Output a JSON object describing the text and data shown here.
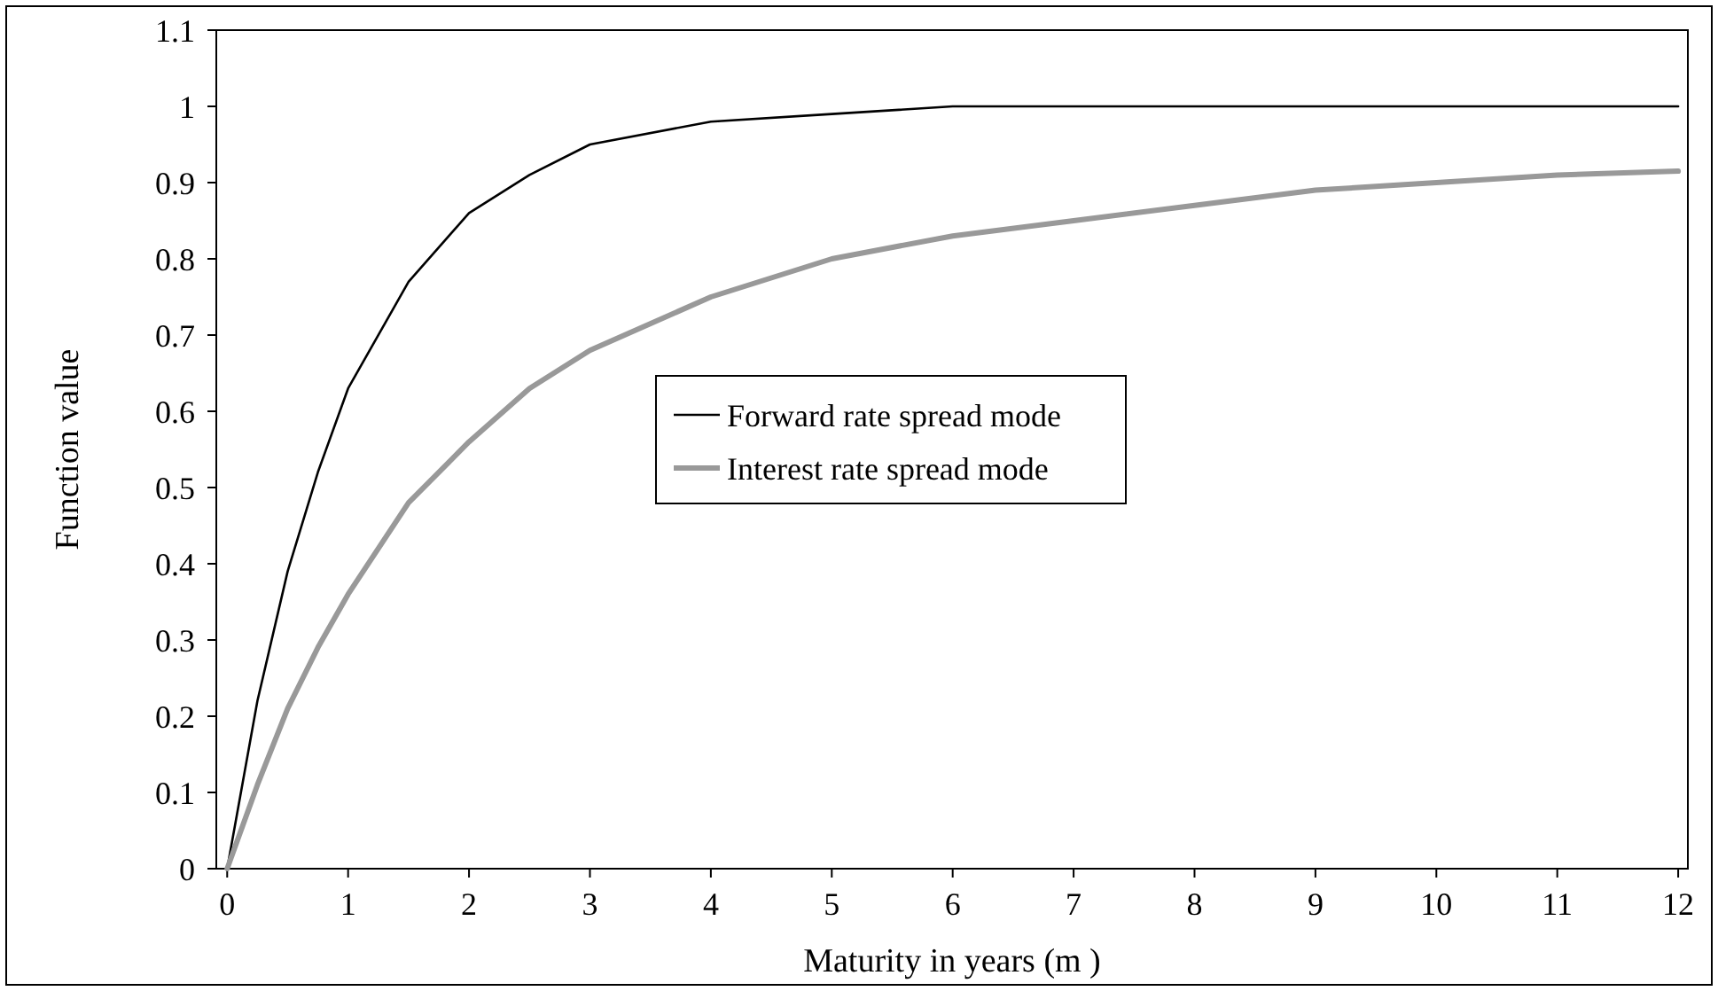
{
  "chart_data": {
    "type": "line",
    "xlabel": "Maturity in years (m )",
    "ylabel": "Function value",
    "xlim": [
      -0.09,
      12.08
    ],
    "xticks": [
      0,
      1,
      2,
      3,
      4,
      5,
      6,
      7,
      8,
      9,
      10,
      11,
      12
    ],
    "ylim": [
      0,
      1.1
    ],
    "yticks": [
      0,
      0.1,
      0.2,
      0.3,
      0.4,
      0.5,
      0.6,
      0.7,
      0.8,
      0.9,
      1,
      1.1
    ],
    "grid": false,
    "legend": "center",
    "series": [
      {
        "name": "Forward rate spread mode",
        "color": "#000000",
        "x": [
          0,
          0.25,
          0.5,
          0.75,
          1,
          1.5,
          2,
          2.5,
          3,
          4,
          5,
          6,
          7,
          8,
          10,
          12
        ],
        "values": [
          0,
          0.22,
          0.39,
          0.52,
          0.63,
          0.77,
          0.86,
          0.91,
          0.95,
          0.98,
          0.99,
          1,
          1,
          1,
          1,
          1
        ]
      },
      {
        "name": "Interest rate spread mode",
        "color": "#999999",
        "x": [
          0,
          0.25,
          0.5,
          0.75,
          1,
          1.5,
          2,
          2.5,
          3,
          4,
          5,
          6,
          7,
          8,
          9,
          10,
          11,
          12
        ],
        "values": [
          0,
          0.11,
          0.21,
          0.29,
          0.36,
          0.48,
          0.56,
          0.63,
          0.68,
          0.75,
          0.8,
          0.83,
          0.85,
          0.87,
          0.89,
          0.9,
          0.91,
          0.915
        ]
      }
    ]
  }
}
